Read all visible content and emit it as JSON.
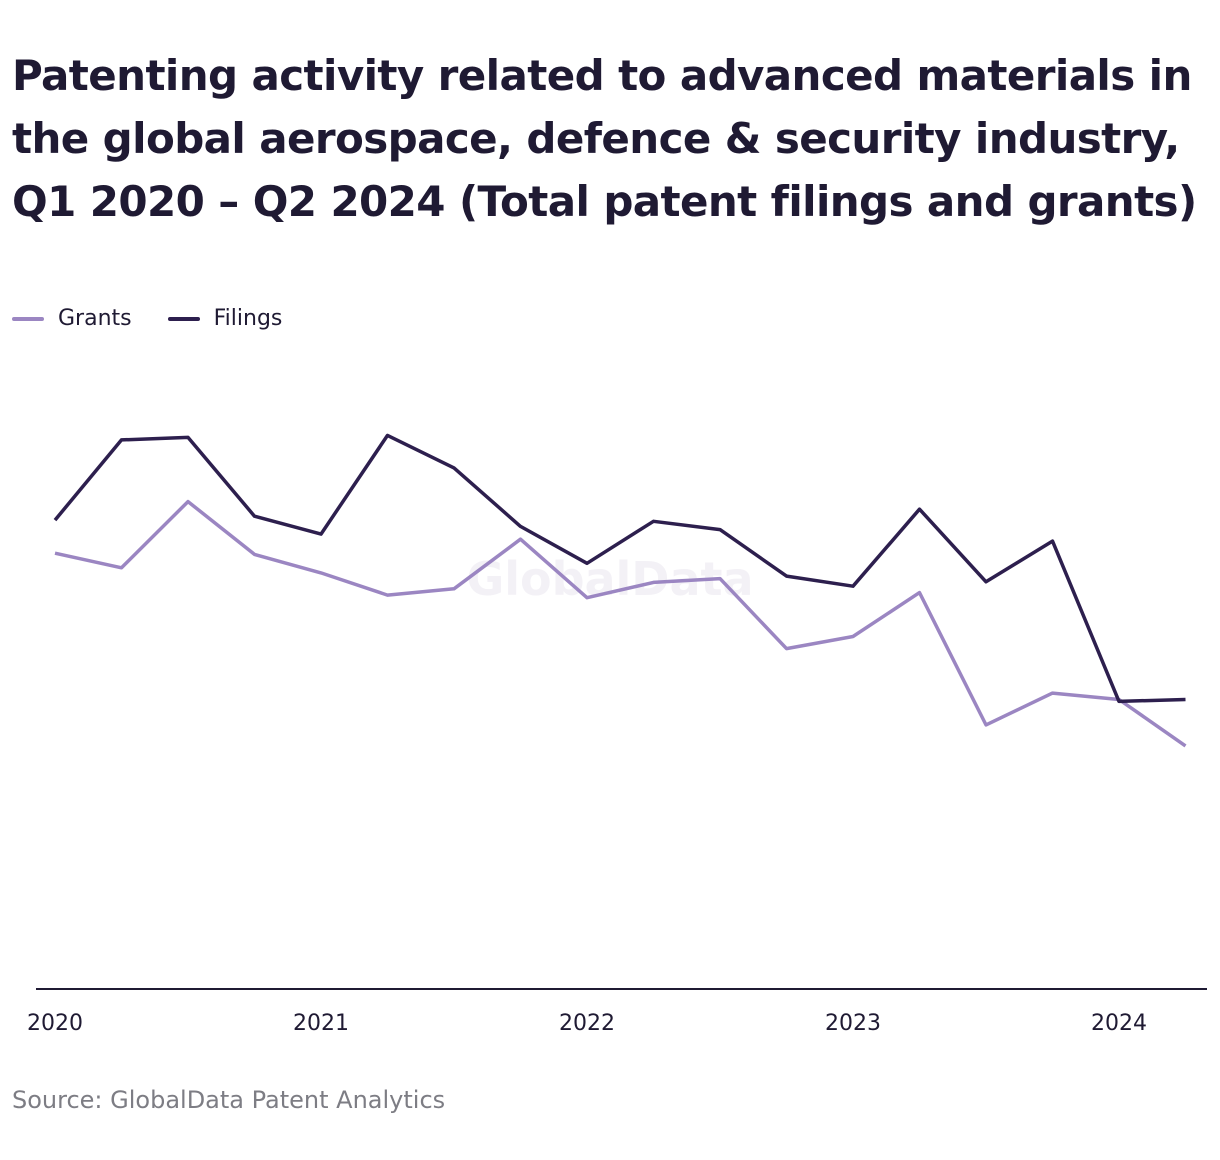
{
  "chart_data": {
    "type": "line",
    "title": "Patenting activity related to advanced materials in the global aerospace, defence & security industry, Q1 2020 – Q2 2024 (Total patent filings and grants)",
    "x": [
      "2020 Q1",
      "2020 Q2",
      "2020 Q3",
      "2020 Q4",
      "2021 Q1",
      "2021 Q2",
      "2021 Q3",
      "2021 Q4",
      "2022 Q1",
      "2022 Q2",
      "2022 Q3",
      "2022 Q4",
      "2023 Q1",
      "2023 Q2",
      "2023 Q3",
      "2023 Q4",
      "2024 Q1",
      "2024 Q2"
    ],
    "x_tick_labels": [
      "2020",
      "2021",
      "2022",
      "2023",
      "2024"
    ],
    "y_axis_labels": "none",
    "grid": false,
    "legend_position": "top-left",
    "watermark": "GlobalData",
    "series": [
      {
        "name": "Grants",
        "color": "#9b86c2",
        "values": [
          68.5,
          66.2,
          76.6,
          68.3,
          65.4,
          61.9,
          62.9,
          70.7,
          61.5,
          63.9,
          64.5,
          53.5,
          55.4,
          62.3,
          41.5,
          46.5,
          45.5,
          38.2
        ]
      },
      {
        "name": "Filings",
        "color": "#2d1f4e",
        "values": [
          73.7,
          86.3,
          86.7,
          74.3,
          71.5,
          87.0,
          81.9,
          72.7,
          66.9,
          73.5,
          72.2,
          64.9,
          63.3,
          75.4,
          64.0,
          70.4,
          45.2,
          45.5
        ]
      }
    ],
    "ylim": [
      0,
      102
    ]
  },
  "footer": {
    "source": "Source: GlobalData Patent Analytics"
  }
}
